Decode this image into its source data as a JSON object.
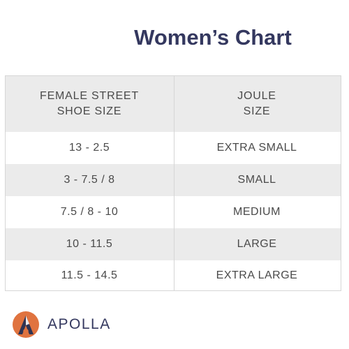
{
  "title": "Women’s Chart",
  "table": {
    "headers": [
      "FEMALE STREET\nSHOE SIZE",
      "JOULE\nSIZE"
    ],
    "rows": [
      [
        "13 - 2.5",
        "EXTRA SMALL"
      ],
      [
        "3 - 7.5 / 8",
        "SMALL"
      ],
      [
        "7.5 / 8 - 10",
        "MEDIUM"
      ],
      [
        "10 - 11.5",
        "LARGE"
      ],
      [
        "11.5 - 14.5",
        "EXTRA LARGE"
      ]
    ]
  },
  "brand": {
    "name": "APOLLA",
    "logo_icon": "apolla-a-logo-icon",
    "accent_color": "#e0733f",
    "text_color": "#34385f"
  }
}
